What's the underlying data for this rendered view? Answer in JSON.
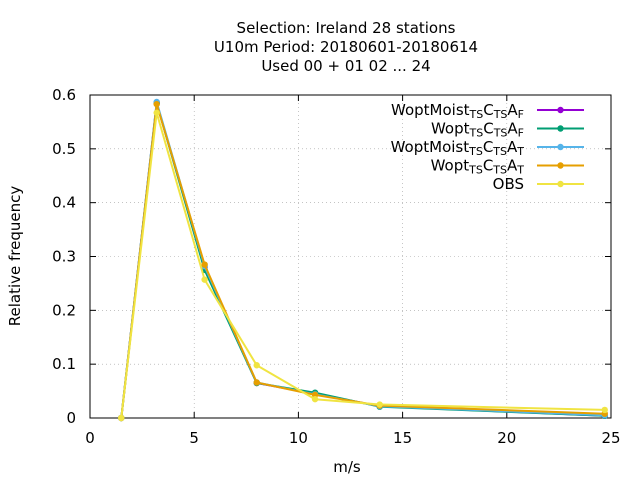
{
  "title_lines": [
    "Selection: Ireland     28 stations",
    "U10m  Period: 20180601-20180614",
    "Used  00 + 01 02 ... 24"
  ],
  "chart_data": {
    "type": "line",
    "xlabel": "m/s",
    "ylabel": "Relative frequency",
    "xlim": [
      0,
      25
    ],
    "ylim": [
      0,
      0.6
    ],
    "x_ticks": [
      "0",
      "5",
      "10",
      "15",
      "20",
      "25"
    ],
    "y_ticks": [
      "0",
      "0.1",
      "0.2",
      "0.3",
      "0.4",
      "0.5",
      "0.6"
    ],
    "grid": true,
    "legend_position": "top-right",
    "series": [
      {
        "name": "WoptMoist",
        "legend_parts": [
          [
            "WoptMoist",
            ""
          ],
          [
            "TS",
            "sub"
          ],
          [
            "C",
            ""
          ],
          [
            "TS",
            "sub"
          ],
          [
            "A",
            ""
          ],
          [
            "F",
            "sub"
          ]
        ],
        "color": "#9400d3",
        "x": [
          1.5,
          3.2,
          5.5,
          8.0,
          10.8,
          13.9,
          24.7
        ],
        "y": [
          0.0,
          0.585,
          0.28,
          0.065,
          0.045,
          0.022,
          0.004
        ]
      },
      {
        "name": "Wopt",
        "legend_parts": [
          [
            "Wopt",
            ""
          ],
          [
            "TS",
            "sub"
          ],
          [
            "C",
            ""
          ],
          [
            "TS",
            "sub"
          ],
          [
            "A",
            ""
          ],
          [
            "F",
            "sub"
          ]
        ],
        "color": "#009e73",
        "x": [
          1.5,
          3.2,
          5.5,
          8.0,
          10.8,
          13.9,
          24.7
        ],
        "y": [
          0.0,
          0.585,
          0.275,
          0.065,
          0.047,
          0.021,
          0.004
        ]
      },
      {
        "name": "WoptMoist",
        "legend_parts": [
          [
            "WoptMoist",
            ""
          ],
          [
            "TS",
            "sub"
          ],
          [
            "C",
            ""
          ],
          [
            "TS",
            "sub"
          ],
          [
            "A",
            ""
          ],
          [
            "T",
            "sub"
          ]
        ],
        "color": "#56b4e9",
        "x": [
          1.5,
          3.2,
          5.5,
          8.0,
          10.8,
          13.9,
          24.7
        ],
        "y": [
          0.0,
          0.587,
          0.282,
          0.066,
          0.044,
          0.022,
          0.005
        ]
      },
      {
        "name": "Wopt",
        "legend_parts": [
          [
            "Wopt",
            ""
          ],
          [
            "TS",
            "sub"
          ],
          [
            "C",
            ""
          ],
          [
            "TS",
            "sub"
          ],
          [
            "A",
            ""
          ],
          [
            "T",
            "sub"
          ]
        ],
        "color": "#e69f00",
        "x": [
          1.5,
          3.2,
          5.5,
          8.0,
          10.8,
          13.9,
          24.7
        ],
        "y": [
          0.0,
          0.583,
          0.285,
          0.066,
          0.043,
          0.023,
          0.008
        ]
      },
      {
        "name": "OBS",
        "legend_parts": [
          [
            "OBS",
            ""
          ]
        ],
        "color": "#f0e442",
        "x": [
          1.5,
          3.2,
          5.5,
          8.0,
          10.8,
          13.9,
          24.7
        ],
        "y": [
          0.0,
          0.567,
          0.257,
          0.098,
          0.035,
          0.025,
          0.015
        ]
      }
    ]
  }
}
